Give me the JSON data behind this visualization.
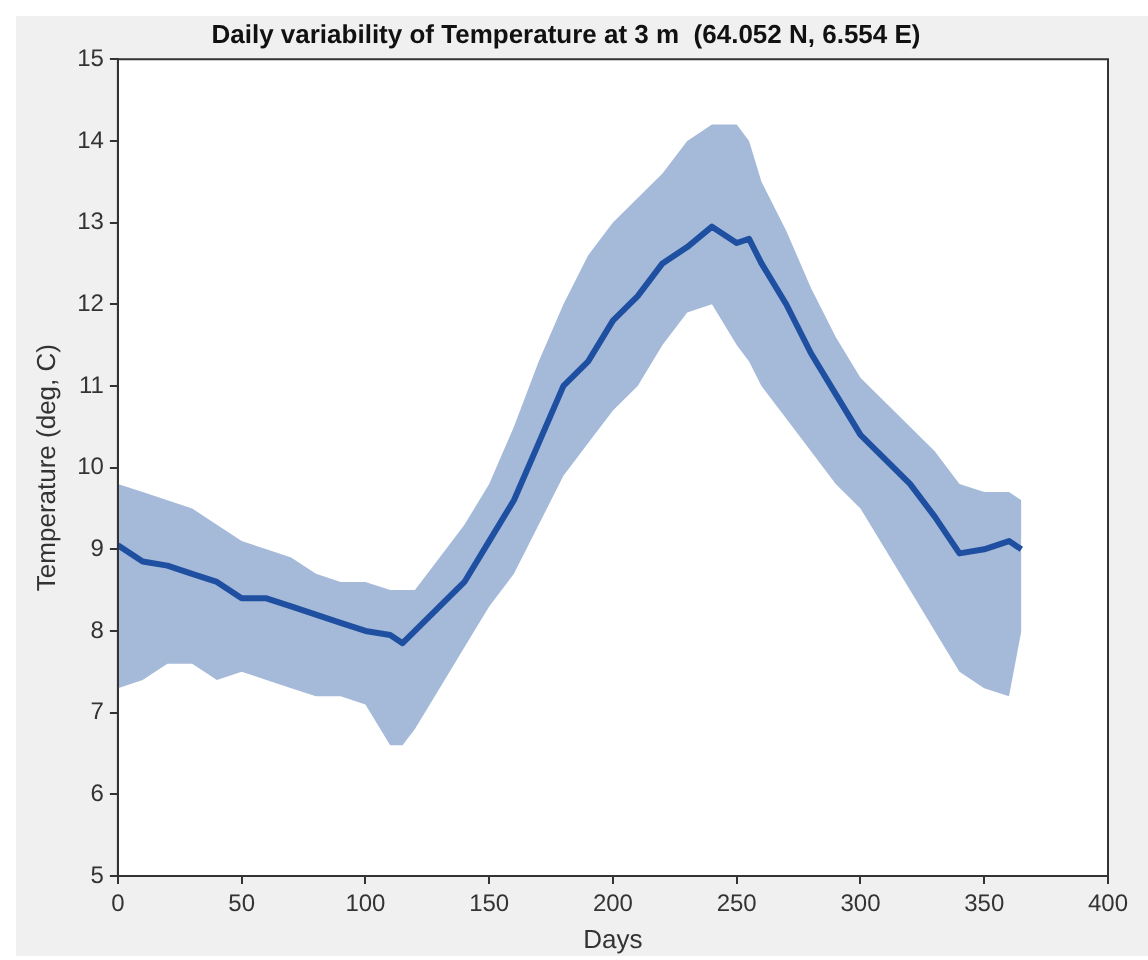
{
  "chart_data": {
    "type": "line",
    "title": "Daily variability of Temperature at 3 m  (64.052 N, 6.554 E)",
    "xlabel": "Days",
    "ylabel": "Temperature (deg, C)",
    "x": [
      0,
      10,
      20,
      30,
      40,
      50,
      60,
      70,
      80,
      90,
      100,
      110,
      115,
      120,
      130,
      140,
      150,
      160,
      170,
      180,
      190,
      200,
      210,
      220,
      230,
      240,
      250,
      255,
      260,
      270,
      280,
      290,
      300,
      310,
      320,
      330,
      340,
      350,
      360,
      365
    ],
    "series": [
      {
        "color": "#1f4fa0",
        "values": [
          9.05,
          8.85,
          8.8,
          8.7,
          8.6,
          8.4,
          8.4,
          8.3,
          8.2,
          8.1,
          8.0,
          7.95,
          7.85,
          8.0,
          8.3,
          8.6,
          9.1,
          9.6,
          10.3,
          11.0,
          11.3,
          11.8,
          12.1,
          12.5,
          12.7,
          12.95,
          12.75,
          12.8,
          12.5,
          12.0,
          11.4,
          10.9,
          10.4,
          10.1,
          9.8,
          9.4,
          8.95,
          9.0,
          9.1,
          9.0
        ],
        "lower": [
          7.3,
          7.4,
          7.6,
          7.6,
          7.4,
          7.5,
          7.4,
          7.3,
          7.2,
          7.2,
          7.1,
          6.6,
          6.6,
          6.8,
          7.3,
          7.8,
          8.3,
          8.7,
          9.3,
          9.9,
          10.3,
          10.7,
          11.0,
          11.5,
          11.9,
          12.0,
          11.5,
          11.3,
          11.0,
          10.6,
          10.2,
          9.8,
          9.5,
          9.0,
          8.5,
          8.0,
          7.5,
          7.3,
          7.2,
          8.0
        ],
        "upper": [
          9.8,
          9.7,
          9.6,
          9.5,
          9.3,
          9.1,
          9.0,
          8.9,
          8.7,
          8.6,
          8.6,
          8.5,
          8.5,
          8.5,
          8.9,
          9.3,
          9.8,
          10.5,
          11.3,
          12.0,
          12.6,
          13.0,
          13.3,
          13.6,
          14.0,
          14.2,
          14.2,
          14.0,
          13.5,
          12.9,
          12.2,
          11.6,
          11.1,
          10.8,
          10.5,
          10.2,
          9.8,
          9.7,
          9.7,
          9.6
        ]
      }
    ],
    "xlim": [
      0,
      400
    ],
    "xticks": [
      0,
      50,
      100,
      150,
      200,
      250,
      300,
      350,
      400
    ],
    "ylim": [
      5,
      15
    ],
    "yticks": [
      5,
      6,
      7,
      8,
      9,
      10,
      11,
      12,
      13,
      14,
      15
    ],
    "grid": false,
    "legend": false
  }
}
